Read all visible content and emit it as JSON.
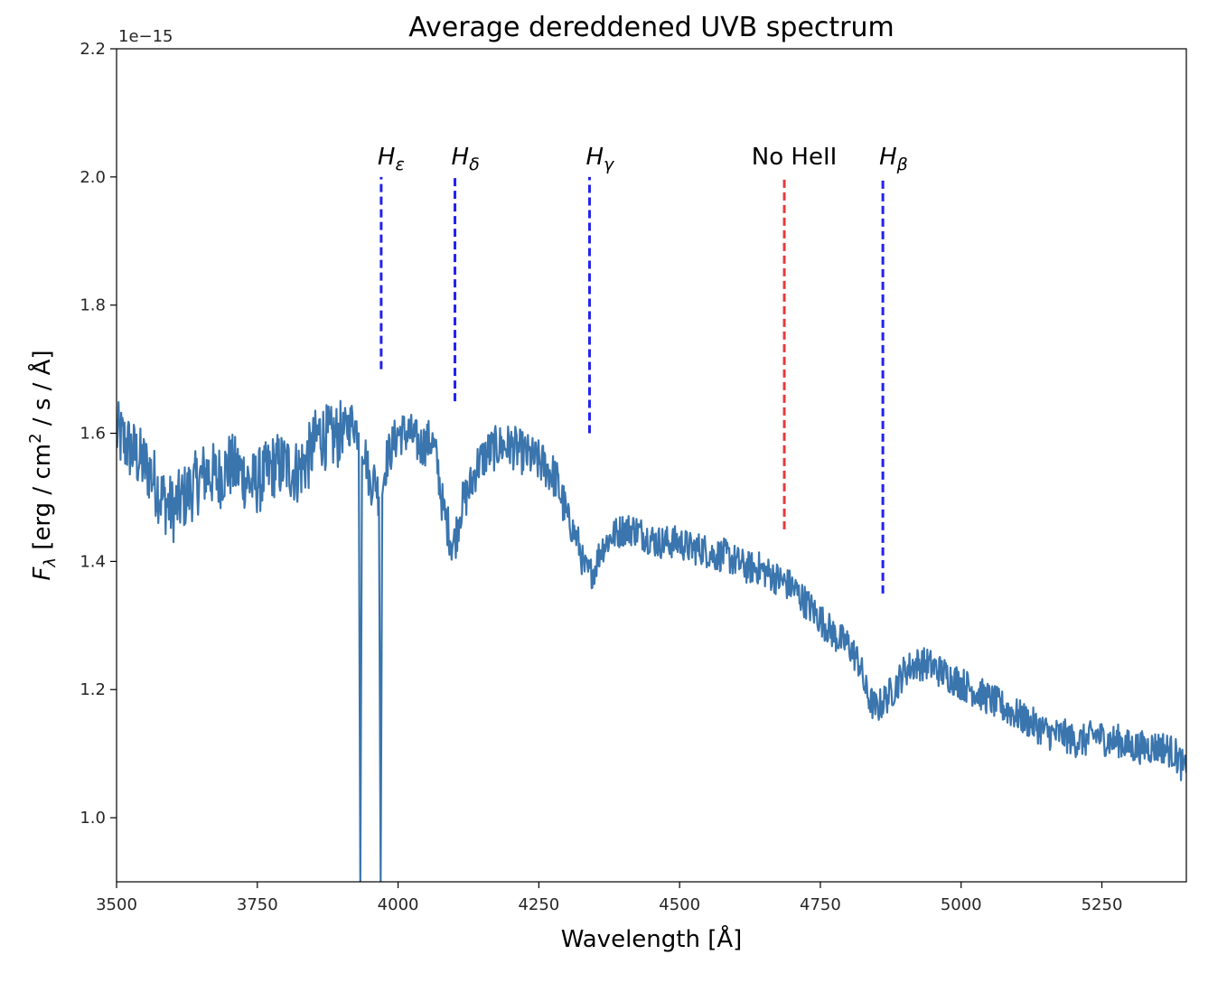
{
  "chart_data": {
    "type": "line",
    "title": "Average dereddened UVB spectrum",
    "xlabel": "Wavelength [Å]",
    "ylabel": "F_λ [erg / cm² / s / Å]",
    "ylabel_parts": {
      "sym": "F",
      "sub": "λ",
      "pre": " [erg / cm",
      "sup": "2",
      "post": " / s / Å]"
    },
    "offset_text": "1e−15",
    "xlim": [
      3500,
      5400
    ],
    "ylim": [
      0.9,
      2.2
    ],
    "xticks": [
      3500,
      3750,
      4000,
      4250,
      4500,
      4750,
      5000,
      5250
    ],
    "xtick_labels": [
      "3500",
      "3750",
      "4000",
      "4250",
      "4500",
      "4750",
      "5000",
      "5250"
    ],
    "yticks": [
      1.0,
      1.2,
      1.4,
      1.6,
      1.8,
      2.0,
      2.2
    ],
    "ytick_labels": [
      "1.0",
      "1.2",
      "1.4",
      "1.6",
      "1.8",
      "2.0",
      "2.2"
    ],
    "series": [
      {
        "color": "#3a75ae",
        "x": [
          3500,
          3520,
          3540,
          3560,
          3580,
          3600,
          3620,
          3640,
          3660,
          3680,
          3700,
          3720,
          3740,
          3760,
          3780,
          3800,
          3820,
          3840,
          3860,
          3880,
          3900,
          3920,
          3930,
          3933,
          3936,
          3940,
          3950,
          3960,
          3966,
          3969,
          3972,
          3980,
          3990,
          4000,
          4020,
          4040,
          4060,
          4070,
          4080,
          4090,
          4095,
          4100,
          4105,
          4110,
          4120,
          4130,
          4140,
          4160,
          4180,
          4200,
          4220,
          4240,
          4260,
          4280,
          4300,
          4320,
          4330,
          4340,
          4350,
          4360,
          4380,
          4400,
          4420,
          4440,
          4460,
          4480,
          4500,
          4520,
          4540,
          4560,
          4580,
          4600,
          4620,
          4640,
          4660,
          4680,
          4700,
          4720,
          4740,
          4760,
          4780,
          4800,
          4820,
          4830,
          4840,
          4850,
          4860,
          4870,
          4880,
          4900,
          4920,
          4940,
          4960,
          4980,
          5000,
          5020,
          5040,
          5060,
          5080,
          5100,
          5120,
          5140,
          5160,
          5180,
          5200,
          5220,
          5240,
          5260,
          5280,
          5300,
          5320,
          5340,
          5360,
          5380,
          5400
        ],
        "y": [
          1.6,
          1.58,
          1.56,
          1.54,
          1.5,
          1.48,
          1.5,
          1.52,
          1.54,
          1.53,
          1.55,
          1.54,
          1.52,
          1.53,
          1.55,
          1.55,
          1.54,
          1.56,
          1.6,
          1.59,
          1.6,
          1.62,
          1.6,
          0.9,
          1.58,
          1.58,
          1.52,
          1.53,
          1.5,
          0.9,
          1.52,
          1.56,
          1.58,
          1.6,
          1.6,
          1.58,
          1.59,
          1.55,
          1.48,
          1.45,
          1.43,
          1.43,
          1.45,
          1.48,
          1.5,
          1.52,
          1.55,
          1.57,
          1.58,
          1.58,
          1.57,
          1.56,
          1.55,
          1.53,
          1.47,
          1.43,
          1.39,
          1.38,
          1.39,
          1.42,
          1.44,
          1.45,
          1.45,
          1.44,
          1.43,
          1.43,
          1.43,
          1.42,
          1.42,
          1.41,
          1.41,
          1.4,
          1.39,
          1.39,
          1.38,
          1.37,
          1.36,
          1.34,
          1.32,
          1.3,
          1.28,
          1.27,
          1.24,
          1.2,
          1.18,
          1.17,
          1.18,
          1.19,
          1.2,
          1.23,
          1.24,
          1.24,
          1.23,
          1.22,
          1.21,
          1.2,
          1.19,
          1.18,
          1.17,
          1.16,
          1.15,
          1.14,
          1.13,
          1.13,
          1.12,
          1.12,
          1.13,
          1.12,
          1.12,
          1.11,
          1.11,
          1.11,
          1.11,
          1.1,
          1.07
        ],
        "noise_amplitude": 0.035
      }
    ],
    "vlines": [
      {
        "label_sym": "H",
        "label_sub": "ε",
        "x": 3970,
        "ymin": 1.7,
        "ymax": 2.0,
        "color": "#2222ee"
      },
      {
        "label_sym": "H",
        "label_sub": "δ",
        "x": 4101,
        "ymin": 1.65,
        "ymax": 2.0,
        "color": "#2222ee"
      },
      {
        "label_sym": "H",
        "label_sub": "γ",
        "x": 4340,
        "ymin": 1.6,
        "ymax": 2.0,
        "color": "#2222ee"
      },
      {
        "label_plain": "No HeII",
        "x": 4686,
        "ymin": 1.45,
        "ymax": 2.0,
        "color": "#e83a3a"
      },
      {
        "label_sym": "H",
        "label_sub": "β",
        "x": 4861,
        "ymin": 1.35,
        "ymax": 2.0,
        "color": "#2222ee"
      }
    ],
    "grid": false,
    "legend": "none"
  }
}
